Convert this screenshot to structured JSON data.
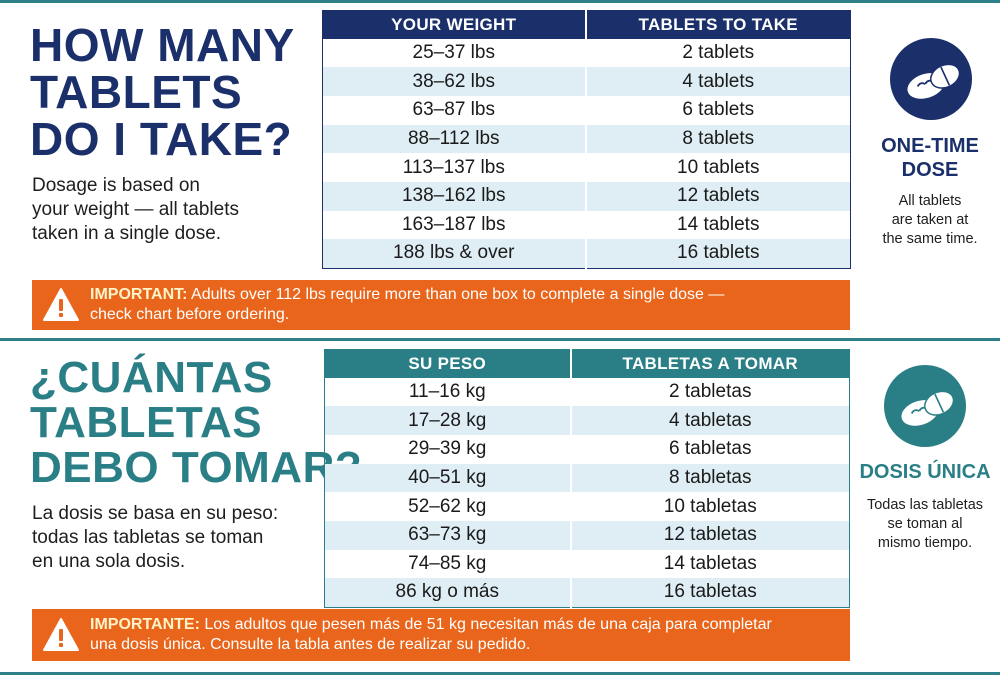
{
  "colors": {
    "navy": "#1b2f6b",
    "teal": "#2a7f86",
    "row_alt": "#dfeef5",
    "warning_orange": "#e9651b",
    "warning_lead": "#fff4c8"
  },
  "english": {
    "title_lines": [
      "HOW MANY",
      "TABLETS",
      "DO I TAKE?"
    ],
    "description_lines": [
      "Dosage is based on",
      "your weight — all tablets",
      "taken in a single dose."
    ],
    "table": {
      "headers": [
        "YOUR WEIGHT",
        "TABLETS TO TAKE"
      ],
      "rows": [
        [
          "25–37 lbs",
          "2 tablets"
        ],
        [
          "38–62 lbs",
          "4 tablets"
        ],
        [
          "63–87 lbs",
          "6 tablets"
        ],
        [
          "88–112 lbs",
          "8 tablets"
        ],
        [
          "113–137 lbs",
          "10 tablets"
        ],
        [
          "138–162 lbs",
          "12 tablets"
        ],
        [
          "163–187 lbs",
          "14 tablets"
        ],
        [
          "188 lbs & over",
          "16 tablets"
        ]
      ]
    },
    "badge": {
      "icon": "tablets-icon",
      "title_lines": [
        "ONE-TIME",
        "DOSE"
      ],
      "note_lines": [
        "All tablets",
        "are taken at",
        "the same time."
      ]
    },
    "warning": {
      "icon": "warning-icon",
      "lead": "IMPORTANT:",
      "line1": " Adults over 112 lbs require more than one box to complete a single dose —",
      "line2": "check chart before ordering."
    }
  },
  "spanish": {
    "title_lines": [
      "¿CUÁNTAS",
      "TABLETAS",
      "DEBO TOMAR?"
    ],
    "description_lines": [
      "La dosis se basa en su peso:",
      "todas las tabletas se toman",
      "en una sola dosis."
    ],
    "table": {
      "headers": [
        "SU PESO",
        "TABLETAS A TOMAR"
      ],
      "rows": [
        [
          "11–16 kg",
          "2 tabletas"
        ],
        [
          "17–28 kg",
          "4 tabletas"
        ],
        [
          "29–39 kg",
          "6 tabletas"
        ],
        [
          "40–51 kg",
          "8 tabletas"
        ],
        [
          "52–62 kg",
          "10 tabletas"
        ],
        [
          "63–73 kg",
          "12 tabletas"
        ],
        [
          "74–85 kg",
          "14 tabletas"
        ],
        [
          "86 kg o más",
          "16 tabletas"
        ]
      ]
    },
    "badge": {
      "icon": "tablets-icon",
      "title_lines": [
        "DOSIS ÚNICA"
      ],
      "note_lines": [
        "Todas las tabletas",
        "se toman al",
        "mismo tiempo."
      ]
    },
    "warning": {
      "icon": "warning-icon",
      "lead": "IMPORTANTE:",
      "line1": " Los adultos que pesen más de 51 kg necesitan más de una caja para completar",
      "line2": "una dosis única. Consulte la tabla antes de realizar su pedido."
    }
  }
}
